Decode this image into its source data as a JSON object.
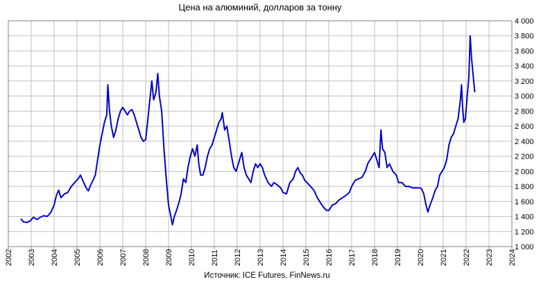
{
  "chart_data": {
    "type": "line",
    "title": "Цена на алюминий, долларов за тонну",
    "source": "Источник: ICE Futures, FinNews.ru",
    "xlabel": "",
    "ylabel": "",
    "xlim": [
      2002,
      2024
    ],
    "ylim": [
      1000,
      4000
    ],
    "grid": true,
    "legend": "none",
    "x_ticks": [
      "2002",
      "2003",
      "2004",
      "2005",
      "2006",
      "2007",
      "2008",
      "2009",
      "2010",
      "2011",
      "2012",
      "2013",
      "2014",
      "2015",
      "2016",
      "2017",
      "2018",
      "2019",
      "2020",
      "2021",
      "2022",
      "2023",
      "2024"
    ],
    "y_ticks": [
      "1 000",
      "1 200",
      "1 400",
      "1 600",
      "1 800",
      "2 000",
      "2 200",
      "2 400",
      "2 600",
      "2 800",
      "3 000",
      "3 200",
      "3 400",
      "3 600",
      "3 800",
      "4 000"
    ],
    "series": [
      {
        "color": "#0000cc",
        "points": [
          [
            2002.55,
            1370
          ],
          [
            2002.65,
            1330
          ],
          [
            2002.8,
            1320
          ],
          [
            2002.95,
            1340
          ],
          [
            2003.1,
            1390
          ],
          [
            2003.25,
            1360
          ],
          [
            2003.4,
            1390
          ],
          [
            2003.55,
            1410
          ],
          [
            2003.7,
            1400
          ],
          [
            2003.85,
            1450
          ],
          [
            2004.0,
            1550
          ],
          [
            2004.1,
            1680
          ],
          [
            2004.2,
            1750
          ],
          [
            2004.3,
            1650
          ],
          [
            2004.45,
            1700
          ],
          [
            2004.6,
            1720
          ],
          [
            2004.75,
            1800
          ],
          [
            2004.9,
            1850
          ],
          [
            2005.05,
            1900
          ],
          [
            2005.15,
            1950
          ],
          [
            2005.25,
            1880
          ],
          [
            2005.4,
            1780
          ],
          [
            2005.5,
            1740
          ],
          [
            2005.6,
            1820
          ],
          [
            2005.7,
            1880
          ],
          [
            2005.8,
            1950
          ],
          [
            2005.9,
            2150
          ],
          [
            2006.0,
            2350
          ],
          [
            2006.1,
            2500
          ],
          [
            2006.2,
            2650
          ],
          [
            2006.3,
            2750
          ],
          [
            2006.35,
            3150
          ],
          [
            2006.42,
            2800
          ],
          [
            2006.5,
            2600
          ],
          [
            2006.6,
            2450
          ],
          [
            2006.7,
            2550
          ],
          [
            2006.8,
            2700
          ],
          [
            2006.9,
            2800
          ],
          [
            2007.0,
            2850
          ],
          [
            2007.1,
            2800
          ],
          [
            2007.2,
            2750
          ],
          [
            2007.3,
            2800
          ],
          [
            2007.4,
            2820
          ],
          [
            2007.5,
            2750
          ],
          [
            2007.6,
            2650
          ],
          [
            2007.7,
            2550
          ],
          [
            2007.8,
            2450
          ],
          [
            2007.9,
            2400
          ],
          [
            2008.0,
            2420
          ],
          [
            2008.1,
            2700
          ],
          [
            2008.2,
            3000
          ],
          [
            2008.27,
            3200
          ],
          [
            2008.35,
            2950
          ],
          [
            2008.45,
            3050
          ],
          [
            2008.53,
            3300
          ],
          [
            2008.6,
            3000
          ],
          [
            2008.7,
            2800
          ],
          [
            2008.8,
            2300
          ],
          [
            2008.9,
            1900
          ],
          [
            2009.0,
            1550
          ],
          [
            2009.1,
            1400
          ],
          [
            2009.17,
            1290
          ],
          [
            2009.25,
            1400
          ],
          [
            2009.35,
            1480
          ],
          [
            2009.45,
            1580
          ],
          [
            2009.55,
            1700
          ],
          [
            2009.65,
            1900
          ],
          [
            2009.75,
            1850
          ],
          [
            2009.85,
            2050
          ],
          [
            2009.95,
            2200
          ],
          [
            2010.05,
            2300
          ],
          [
            2010.15,
            2200
          ],
          [
            2010.25,
            2350
          ],
          [
            2010.32,
            2100
          ],
          [
            2010.4,
            1950
          ],
          [
            2010.5,
            1950
          ],
          [
            2010.6,
            2050
          ],
          [
            2010.7,
            2200
          ],
          [
            2010.8,
            2300
          ],
          [
            2010.9,
            2350
          ],
          [
            2011.0,
            2450
          ],
          [
            2011.1,
            2550
          ],
          [
            2011.2,
            2650
          ],
          [
            2011.3,
            2700
          ],
          [
            2011.35,
            2780
          ],
          [
            2011.45,
            2550
          ],
          [
            2011.55,
            2600
          ],
          [
            2011.65,
            2400
          ],
          [
            2011.75,
            2200
          ],
          [
            2011.85,
            2050
          ],
          [
            2011.95,
            2000
          ],
          [
            2012.1,
            2150
          ],
          [
            2012.2,
            2250
          ],
          [
            2012.3,
            2050
          ],
          [
            2012.4,
            1950
          ],
          [
            2012.5,
            1900
          ],
          [
            2012.6,
            1850
          ],
          [
            2012.7,
            2000
          ],
          [
            2012.8,
            2100
          ],
          [
            2012.9,
            2050
          ],
          [
            2013.0,
            2100
          ],
          [
            2013.1,
            2050
          ],
          [
            2013.2,
            1950
          ],
          [
            2013.35,
            1850
          ],
          [
            2013.5,
            1800
          ],
          [
            2013.6,
            1850
          ],
          [
            2013.75,
            1820
          ],
          [
            2013.9,
            1780
          ],
          [
            2014.0,
            1720
          ],
          [
            2014.15,
            1700
          ],
          [
            2014.3,
            1850
          ],
          [
            2014.45,
            1900
          ],
          [
            2014.55,
            2000
          ],
          [
            2014.65,
            2050
          ],
          [
            2014.75,
            1980
          ],
          [
            2014.85,
            1950
          ],
          [
            2014.95,
            1880
          ],
          [
            2015.05,
            1850
          ],
          [
            2015.2,
            1800
          ],
          [
            2015.35,
            1750
          ],
          [
            2015.5,
            1650
          ],
          [
            2015.6,
            1600
          ],
          [
            2015.75,
            1530
          ],
          [
            2015.9,
            1480
          ],
          [
            2016.0,
            1480
          ],
          [
            2016.15,
            1550
          ],
          [
            2016.3,
            1570
          ],
          [
            2016.45,
            1620
          ],
          [
            2016.6,
            1650
          ],
          [
            2016.75,
            1680
          ],
          [
            2016.9,
            1720
          ],
          [
            2017.0,
            1800
          ],
          [
            2017.15,
            1880
          ],
          [
            2017.3,
            1900
          ],
          [
            2017.45,
            1920
          ],
          [
            2017.6,
            2000
          ],
          [
            2017.7,
            2100
          ],
          [
            2017.8,
            2150
          ],
          [
            2017.9,
            2200
          ],
          [
            2018.0,
            2250
          ],
          [
            2018.1,
            2150
          ],
          [
            2018.2,
            2050
          ],
          [
            2018.28,
            2550
          ],
          [
            2018.35,
            2300
          ],
          [
            2018.45,
            2250
          ],
          [
            2018.55,
            2050
          ],
          [
            2018.65,
            2100
          ],
          [
            2018.8,
            2000
          ],
          [
            2018.95,
            1950
          ],
          [
            2019.05,
            1850
          ],
          [
            2019.2,
            1850
          ],
          [
            2019.35,
            1800
          ],
          [
            2019.5,
            1800
          ],
          [
            2019.65,
            1780
          ],
          [
            2019.8,
            1780
          ],
          [
            2019.95,
            1780
          ],
          [
            2020.05,
            1770
          ],
          [
            2020.15,
            1700
          ],
          [
            2020.25,
            1550
          ],
          [
            2020.33,
            1460
          ],
          [
            2020.42,
            1550
          ],
          [
            2020.55,
            1650
          ],
          [
            2020.65,
            1750
          ],
          [
            2020.75,
            1800
          ],
          [
            2020.85,
            1950
          ],
          [
            2020.95,
            2000
          ],
          [
            2021.05,
            2050
          ],
          [
            2021.15,
            2150
          ],
          [
            2021.25,
            2350
          ],
          [
            2021.35,
            2450
          ],
          [
            2021.45,
            2500
          ],
          [
            2021.55,
            2600
          ],
          [
            2021.65,
            2700
          ],
          [
            2021.75,
            2950
          ],
          [
            2021.8,
            3150
          ],
          [
            2021.85,
            2850
          ],
          [
            2021.9,
            2650
          ],
          [
            2021.97,
            2700
          ],
          [
            2022.05,
            3000
          ],
          [
            2022.12,
            3250
          ],
          [
            2022.18,
            3800
          ],
          [
            2022.24,
            3500
          ],
          [
            2022.3,
            3300
          ],
          [
            2022.38,
            3050
          ]
        ]
      }
    ]
  }
}
